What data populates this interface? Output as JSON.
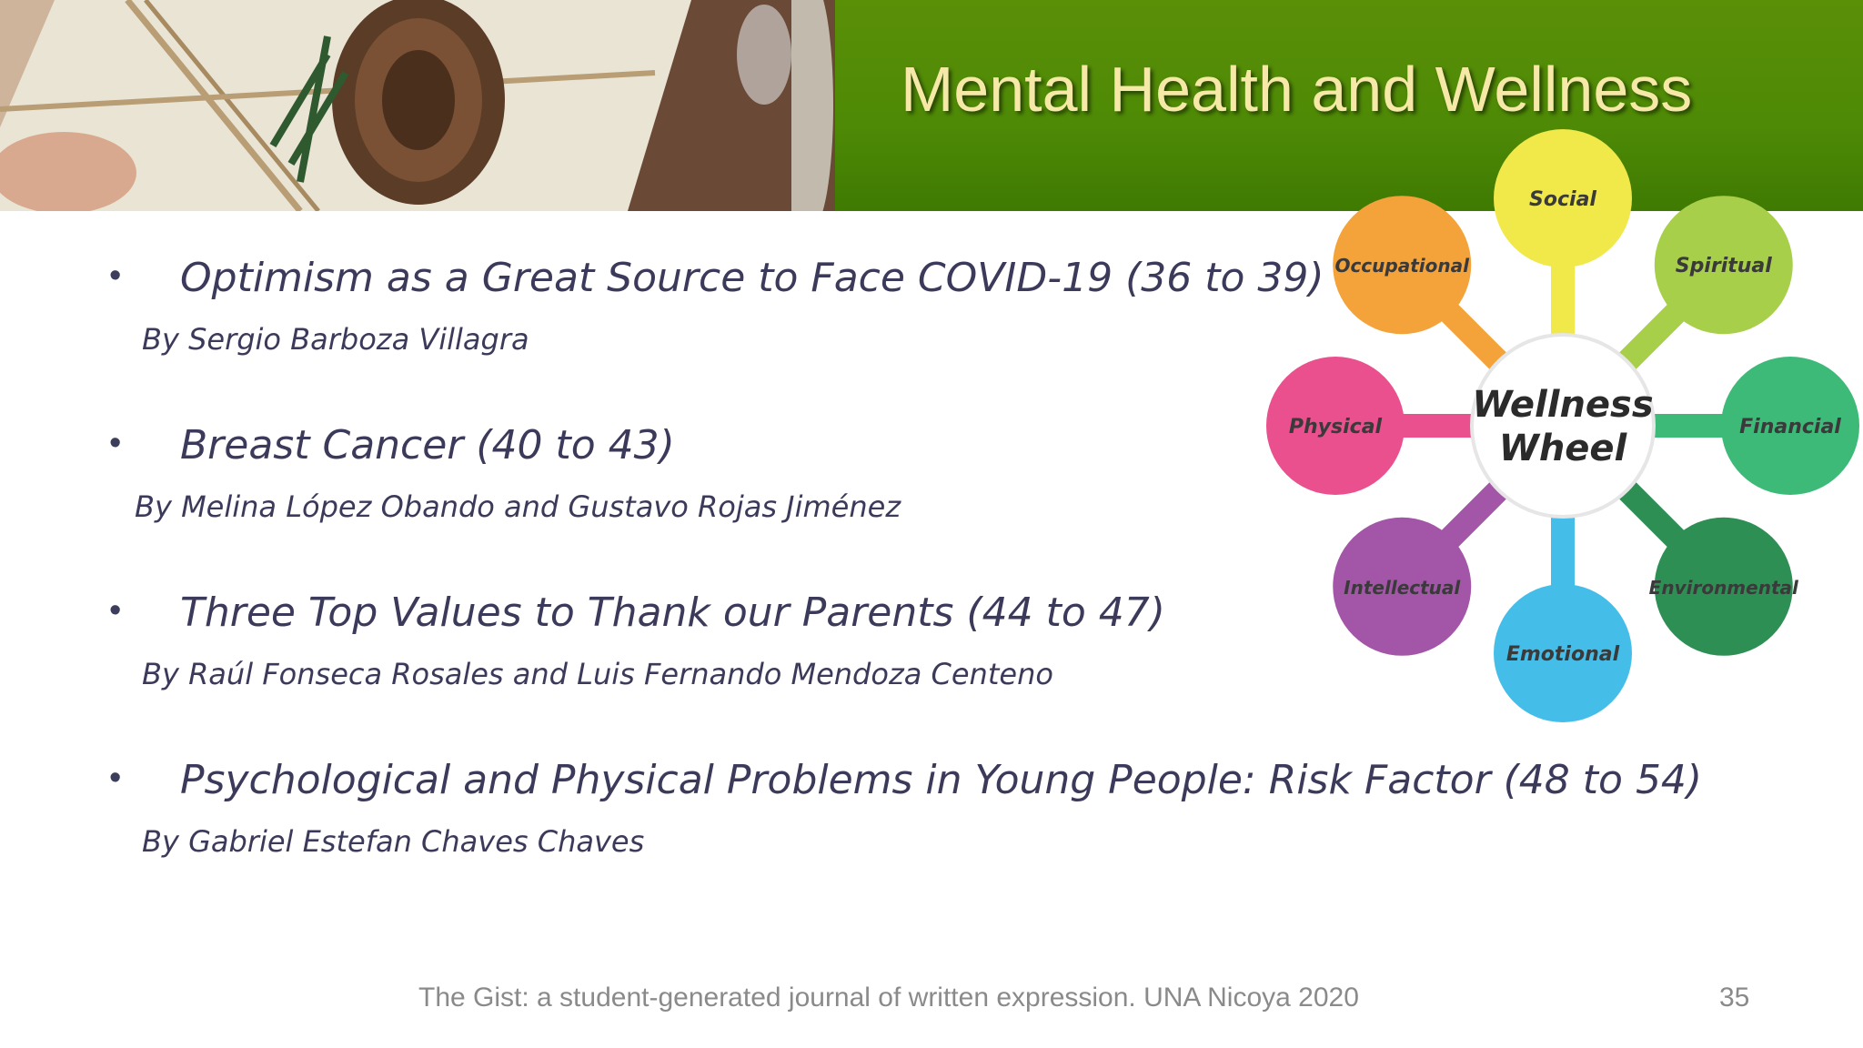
{
  "slide": {
    "title": "Mental Health and Wellness",
    "items": [
      {
        "title": "Optimism as a Great Source to Face COVID-19 (36 to 39)",
        "author": "By Sergio Barboza Villagra"
      },
      {
        "title": "Breast Cancer (40 to 43)",
        "author": "By Melina López Obando and Gustavo Rojas Jiménez"
      },
      {
        "title": "Three Top Values to Thank our Parents  (44 to 47)",
        "author": "By Raúl Fonseca Rosales and Luis Fernando Mendoza Centeno"
      },
      {
        "title": "Psychological and Physical Problems in Young People:  Risk Factor (48 to 54)",
        "author": "By Gabriel Estefan Chaves Chaves"
      }
    ],
    "bullet": "•",
    "footer": "The Gist:  a student-generated journal of written expression.  UNA Nicoya 2020",
    "page_number": "35"
  },
  "wheel": {
    "center_line1": "Wellness",
    "center_line2": "Wheel",
    "petals": [
      {
        "label": "Social",
        "color": "#f1e84a"
      },
      {
        "label": "Spiritual",
        "color": "#a8cf4a"
      },
      {
        "label": "Financial",
        "color": "#3dba78"
      },
      {
        "label": "Environmental",
        "color": "#2e8f54"
      },
      {
        "label": "Emotional",
        "color": "#45bde9"
      },
      {
        "label": "Intellectual",
        "color": "#a355a8"
      },
      {
        "label": "Physical",
        "color": "#ea4f8e"
      },
      {
        "label": "Occupational",
        "color": "#f4a23a"
      }
    ]
  }
}
